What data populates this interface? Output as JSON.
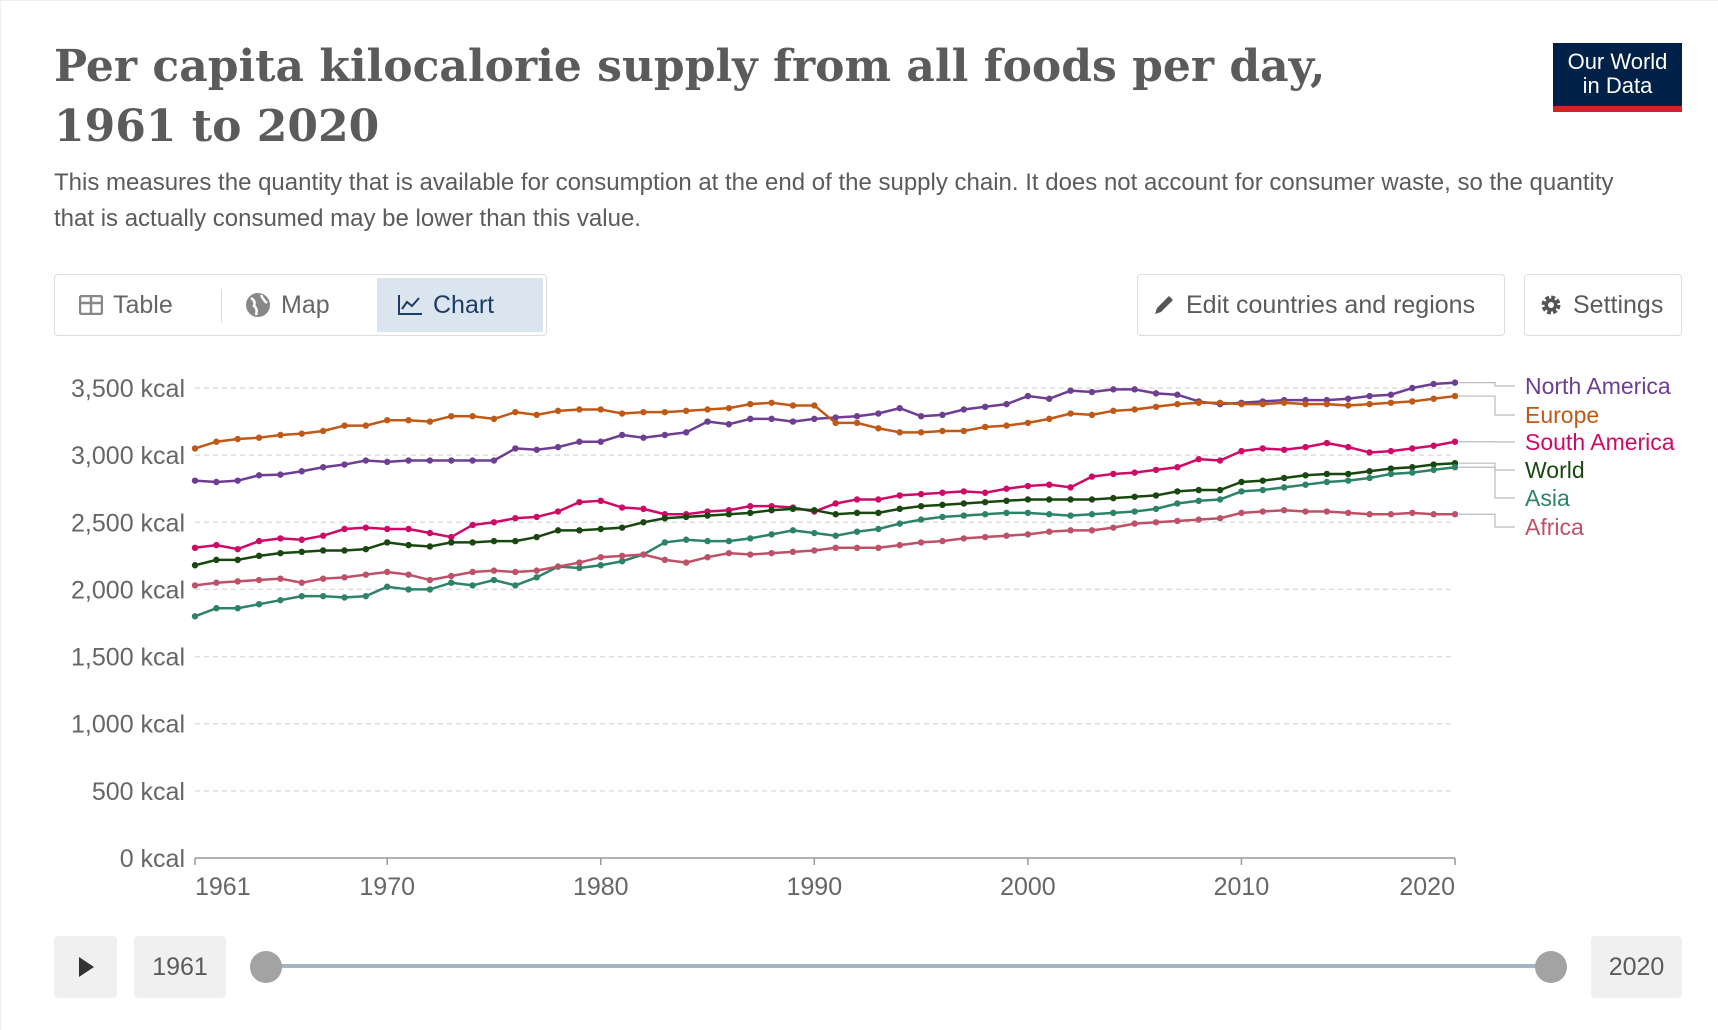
{
  "header": {
    "title": "Per capita kilocalorie supply from all foods per day, 1961 to 2020",
    "subtitle": "This measures the quantity that is available for consumption at the end of the supply chain. It does not account for consumer waste, so the quantity that is actually consumed may be lower than this value.",
    "logo_line1": "Our World",
    "logo_line2": "in Data"
  },
  "tabs": [
    {
      "label": "Table",
      "icon": "table-icon"
    },
    {
      "label": "Map",
      "icon": "globe-icon"
    },
    {
      "label": "Chart",
      "icon": "line-chart-icon",
      "active": true
    }
  ],
  "toolbar": {
    "edit_label": "Edit countries and regions",
    "settings_label": "Settings"
  },
  "timeline": {
    "start_label": "1961",
    "end_label": "2020",
    "start_fraction": 0,
    "end_fraction": 1
  },
  "chart_data": {
    "type": "line",
    "title": "Per capita kilocalorie supply from all foods per day, 1961 to 2020",
    "xlabel": "",
    "ylabel": "",
    "unit": "kcal",
    "xlim": [
      1961,
      2020
    ],
    "ylim": [
      0,
      3500
    ],
    "yticks": [
      0,
      500,
      1000,
      1500,
      2000,
      2500,
      3000,
      3500
    ],
    "ytick_labels": [
      "0 kcal",
      "500 kcal",
      "1,000 kcal",
      "1,500 kcal",
      "2,000 kcal",
      "2,500 kcal",
      "3,000 kcal",
      "3,500 kcal"
    ],
    "xticks": [
      1961,
      1970,
      1980,
      1990,
      2000,
      2010,
      2020
    ],
    "xtick_labels": [
      "1961",
      "1970",
      "1980",
      "1990",
      "2000",
      "2010",
      "2020"
    ],
    "grid": "horizontal dashed",
    "legend": "right",
    "x_start": 1961,
    "series": [
      {
        "name": "North America",
        "color": "#6D3E91",
        "values": [
          2810,
          2800,
          2810,
          2850,
          2855,
          2880,
          2910,
          2930,
          2960,
          2950,
          2960,
          2960,
          2960,
          2960,
          2960,
          3050,
          3040,
          3060,
          3100,
          3100,
          3150,
          3130,
          3150,
          3170,
          3250,
          3230,
          3270,
          3270,
          3250,
          3270,
          3280,
          3290,
          3310,
          3350,
          3290,
          3300,
          3340,
          3360,
          3380,
          3440,
          3420,
          3480,
          3470,
          3490,
          3490,
          3460,
          3450,
          3400,
          3380,
          3390,
          3400,
          3410,
          3410,
          3410,
          3420,
          3440,
          3450,
          3500,
          3530,
          3540
        ]
      },
      {
        "name": "Europe",
        "color": "#C05917",
        "values": [
          3050,
          3100,
          3120,
          3130,
          3150,
          3160,
          3180,
          3220,
          3220,
          3260,
          3260,
          3250,
          3290,
          3290,
          3270,
          3320,
          3300,
          3330,
          3340,
          3340,
          3310,
          3320,
          3320,
          3330,
          3340,
          3350,
          3380,
          3390,
          3370,
          3370,
          3240,
          3240,
          3200,
          3170,
          3170,
          3180,
          3180,
          3210,
          3220,
          3240,
          3270,
          3310,
          3300,
          3330,
          3340,
          3360,
          3380,
          3390,
          3390,
          3380,
          3380,
          3390,
          3380,
          3380,
          3370,
          3380,
          3390,
          3400,
          3420,
          3440
        ]
      },
      {
        "name": "South America",
        "color": "#CF0A66",
        "values": [
          2310,
          2330,
          2300,
          2360,
          2380,
          2370,
          2400,
          2450,
          2460,
          2450,
          2450,
          2420,
          2390,
          2480,
          2500,
          2530,
          2540,
          2580,
          2650,
          2660,
          2610,
          2600,
          2560,
          2560,
          2580,
          2590,
          2620,
          2620,
          2610,
          2580,
          2640,
          2670,
          2670,
          2700,
          2710,
          2720,
          2730,
          2720,
          2750,
          2770,
          2780,
          2760,
          2840,
          2860,
          2870,
          2890,
          2910,
          2970,
          2960,
          3030,
          3050,
          3040,
          3060,
          3090,
          3060,
          3020,
          3030,
          3050,
          3070,
          3100
        ]
      },
      {
        "name": "World",
        "color": "#18470F",
        "values": [
          2180,
          2220,
          2220,
          2250,
          2270,
          2280,
          2290,
          2290,
          2300,
          2350,
          2330,
          2320,
          2350,
          2350,
          2360,
          2360,
          2390,
          2440,
          2440,
          2450,
          2460,
          2500,
          2530,
          2540,
          2550,
          2560,
          2570,
          2590,
          2600,
          2590,
          2560,
          2570,
          2570,
          2600,
          2620,
          2630,
          2640,
          2650,
          2660,
          2670,
          2670,
          2670,
          2670,
          2680,
          2690,
          2700,
          2730,
          2740,
          2740,
          2800,
          2810,
          2830,
          2850,
          2860,
          2860,
          2880,
          2900,
          2910,
          2930,
          2940
        ]
      },
      {
        "name": "Asia",
        "color": "#2C8465",
        "values": [
          1800,
          1860,
          1860,
          1890,
          1920,
          1950,
          1950,
          1940,
          1950,
          2020,
          2000,
          2000,
          2050,
          2030,
          2070,
          2030,
          2090,
          2170,
          2160,
          2180,
          2210,
          2260,
          2350,
          2370,
          2360,
          2360,
          2380,
          2410,
          2440,
          2420,
          2400,
          2430,
          2450,
          2490,
          2520,
          2540,
          2550,
          2560,
          2570,
          2570,
          2560,
          2550,
          2560,
          2570,
          2580,
          2600,
          2640,
          2660,
          2670,
          2730,
          2740,
          2760,
          2780,
          2800,
          2810,
          2830,
          2860,
          2870,
          2890,
          2910
        ]
      },
      {
        "name": "Africa",
        "color": "#BE5168",
        "values": [
          2030,
          2050,
          2060,
          2070,
          2080,
          2050,
          2080,
          2090,
          2110,
          2130,
          2110,
          2070,
          2100,
          2130,
          2140,
          2130,
          2140,
          2170,
          2200,
          2240,
          2250,
          2260,
          2220,
          2200,
          2240,
          2270,
          2260,
          2270,
          2280,
          2290,
          2310,
          2310,
          2310,
          2330,
          2350,
          2360,
          2380,
          2390,
          2400,
          2410,
          2430,
          2440,
          2440,
          2460,
          2490,
          2500,
          2510,
          2520,
          2530,
          2570,
          2580,
          2590,
          2580,
          2580,
          2570,
          2560,
          2560,
          2570,
          2560,
          2560
        ]
      }
    ]
  }
}
